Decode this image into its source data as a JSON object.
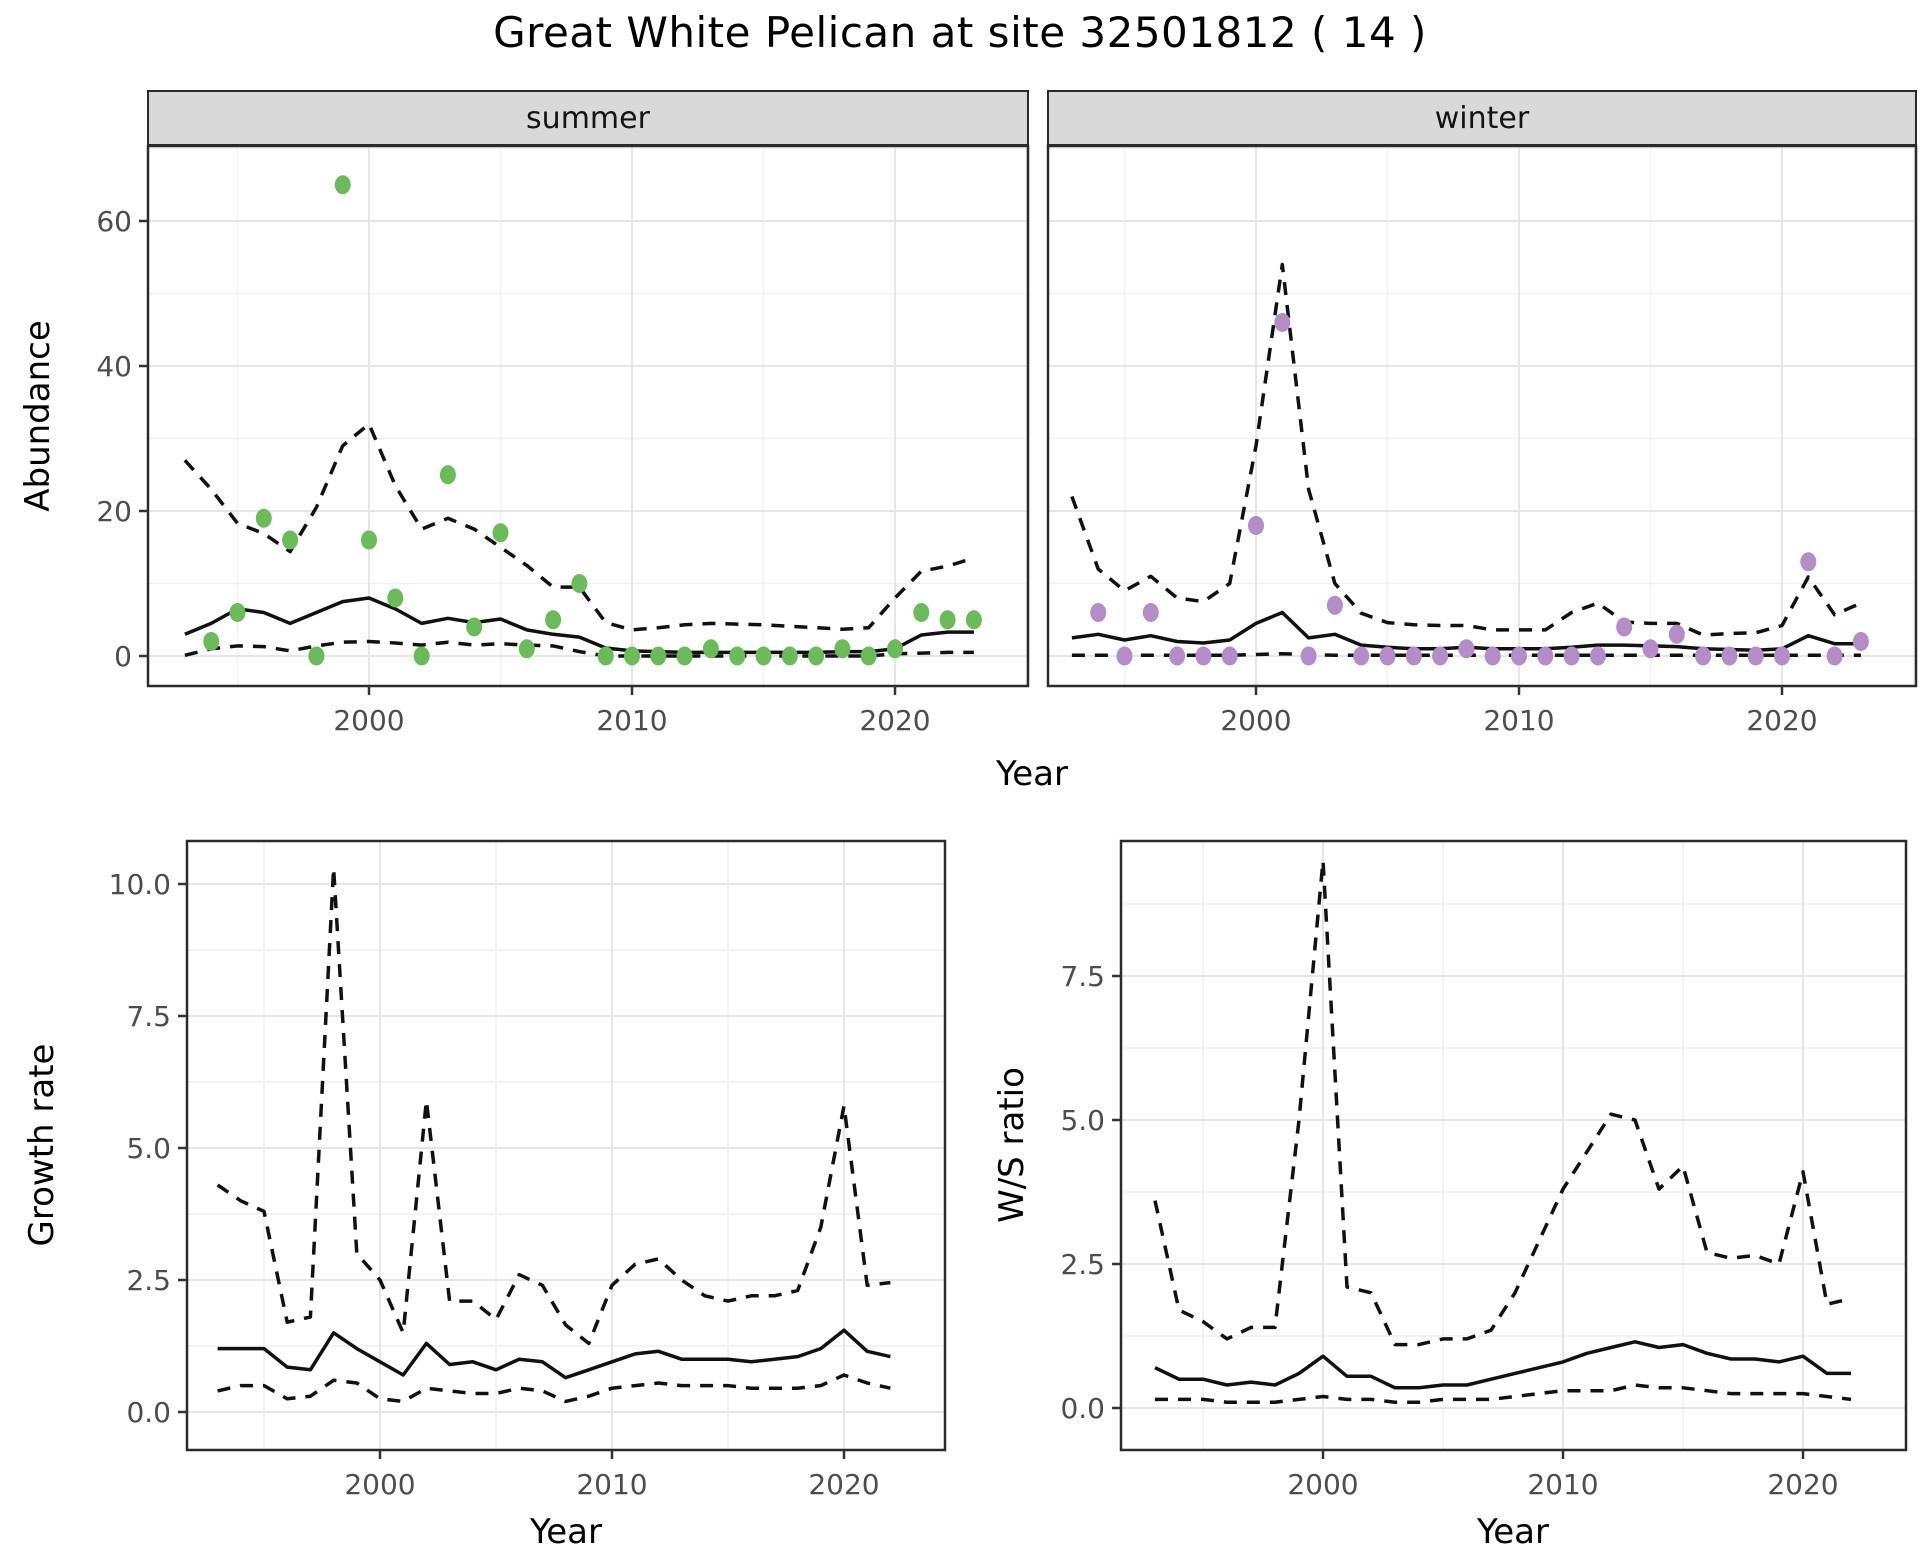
{
  "title": "Great White Pelican at site 32501812 ( 14 )",
  "colors": {
    "summer_point": "#6CBB5A",
    "winter_point": "#B48CC8",
    "line": "#111111",
    "grid_major": "#E6E6E6",
    "grid_minor": "#F1F1F1",
    "strip_bg": "#D9D9D9",
    "axis_text": "#4D4D4D",
    "panel_border": "#2B2B2B"
  },
  "chart_data": [
    {
      "type": "line",
      "facet": "summer",
      "xlabel": "Year",
      "ylabel": "Abundance",
      "legend_position": "none",
      "grid": true,
      "xlim": [
        1991.6,
        2025.2
      ],
      "ylim": [
        -4,
        70
      ],
      "xticks": {
        "values": [
          2000,
          2010,
          2020
        ],
        "labels": [
          "2000",
          "2010",
          "2020"
        ]
      },
      "xminor": [
        1995,
        2005,
        2015,
        2025
      ],
      "yticks": {
        "values": [
          0,
          20,
          40,
          60
        ],
        "labels": [
          "0",
          "20",
          "40",
          "60"
        ]
      },
      "yminor": [
        10,
        30,
        50,
        70
      ],
      "point_color": "#6CBB5A",
      "years_points": [
        1994,
        1995,
        1996,
        1997,
        1998,
        1999,
        2000,
        2001,
        2002,
        2003,
        2004,
        2005,
        2006,
        2007,
        2008,
        2009,
        2010,
        2011,
        2012,
        2013,
        2014,
        2015,
        2016,
        2017,
        2018,
        2019,
        2020,
        2021,
        2022,
        2023
      ],
      "points": [
        2,
        6,
        19,
        16,
        0,
        65,
        16,
        8,
        0,
        25,
        4,
        17,
        1,
        5,
        10,
        0,
        0,
        0,
        0,
        1,
        0,
        0,
        0,
        0,
        1,
        0,
        1,
        6,
        5,
        5
      ],
      "years_lines": [
        1993,
        1994,
        1995,
        1996,
        1997,
        1998,
        1999,
        2000,
        2001,
        2002,
        2003,
        2004,
        2005,
        2006,
        2007,
        2008,
        2009,
        2010,
        2011,
        2012,
        2013,
        2014,
        2015,
        2016,
        2017,
        2018,
        2019,
        2020,
        2021,
        2022,
        2023
      ],
      "fit": [
        3,
        4.5,
        6.5,
        6,
        4.5,
        6,
        7.5,
        8,
        6.5,
        4.5,
        5.2,
        4.6,
        5.1,
        3.6,
        3,
        2.6,
        1.1,
        0.7,
        0.6,
        0.5,
        0.5,
        0.5,
        0.5,
        0.5,
        0.5,
        0.6,
        0.6,
        1,
        2.9,
        3.3,
        3.3
      ],
      "ci_upper": [
        27,
        23,
        18.3,
        16.9,
        14.4,
        20.5,
        29,
        32,
        23.5,
        17.5,
        19,
        17.5,
        15,
        12.5,
        9.5,
        9.5,
        4.6,
        3.6,
        3.9,
        4.3,
        4.5,
        4.4,
        4.3,
        4.1,
        3.9,
        3.7,
        3.9,
        8,
        11.7,
        12.4,
        13.5
      ],
      "ci_lower": [
        0.1,
        1,
        1.4,
        1.3,
        0.7,
        1.4,
        1.9,
        2,
        1.8,
        1.5,
        1.9,
        1.5,
        1.7,
        1.5,
        1.4,
        0.6,
        0,
        0,
        0,
        0,
        0,
        0,
        0,
        0,
        0,
        0,
        0,
        0.3,
        0.4,
        0.5,
        0.5
      ]
    },
    {
      "type": "line",
      "facet": "winter",
      "xlabel": "Year",
      "ylabel": "Abundance",
      "legend_position": "none",
      "grid": true,
      "xlim": [
        1991.6,
        2025.2
      ],
      "ylim": [
        -4,
        70
      ],
      "xticks": {
        "values": [
          2000,
          2010,
          2020
        ],
        "labels": [
          "2000",
          "2010",
          "2020"
        ]
      },
      "xminor": [
        1995,
        2005,
        2015,
        2025
      ],
      "yticks": {
        "values": [
          0,
          20,
          40,
          60
        ],
        "labels": [
          "0",
          "20",
          "40",
          "60"
        ]
      },
      "yminor": [
        10,
        30,
        50,
        70
      ],
      "point_color": "#B48CC8",
      "years_points": [
        1994,
        1995,
        1996,
        1997,
        1998,
        1999,
        2000,
        2001,
        2002,
        2003,
        2004,
        2005,
        2006,
        2007,
        2008,
        2009,
        2010,
        2011,
        2012,
        2013,
        2014,
        2015,
        2016,
        2017,
        2018,
        2019,
        2020,
        2021,
        2022,
        2023
      ],
      "points": [
        6,
        0,
        6,
        0,
        0,
        0,
        18,
        46,
        0,
        7,
        0,
        0,
        0,
        0,
        1,
        0,
        0,
        0,
        0,
        0,
        4,
        1,
        3,
        0,
        0,
        0,
        0,
        13,
        0,
        2
      ],
      "years_lines": [
        1993,
        1994,
        1995,
        1996,
        1997,
        1998,
        1999,
        2000,
        2001,
        2002,
        2003,
        2004,
        2005,
        2006,
        2007,
        2008,
        2009,
        2010,
        2011,
        2012,
        2013,
        2014,
        2015,
        2016,
        2017,
        2018,
        2019,
        2020,
        2021,
        2022,
        2023
      ],
      "fit": [
        2.5,
        3,
        2.2,
        2.8,
        2,
        1.8,
        2.2,
        4.5,
        6,
        2.5,
        3,
        1.5,
        1.2,
        1,
        1,
        1.2,
        1,
        1,
        1,
        1.2,
        1.5,
        1.5,
        1.4,
        1.3,
        1,
        0.9,
        0.8,
        1,
        2.8,
        1.7,
        1.7
      ],
      "ci_upper": [
        22,
        12,
        9,
        11,
        8,
        7.5,
        10,
        29,
        54,
        23,
        10,
        5.9,
        4.6,
        4.3,
        4.2,
        4.2,
        3.6,
        3.6,
        3.6,
        6,
        7.3,
        4.7,
        4.5,
        4.5,
        2.9,
        3.1,
        3.2,
        4.2,
        10.9,
        5.7,
        7.3
      ],
      "ci_lower": [
        0.1,
        0.1,
        0.1,
        0.1,
        0.1,
        0.1,
        0.1,
        0.2,
        0.3,
        0.2,
        0.1,
        0.1,
        0.1,
        0.1,
        0.1,
        0.1,
        0.1,
        0.1,
        0.1,
        0.1,
        0.1,
        0.1,
        0.1,
        0.1,
        0.1,
        0.1,
        0.1,
        0.1,
        0.1,
        0.1,
        0.1
      ]
    },
    {
      "type": "line",
      "facet": "",
      "xlabel": "Year",
      "ylabel": "Growth rate",
      "legend_position": "none",
      "grid": true,
      "xlim": [
        1991.7,
        2024.4
      ],
      "ylim": [
        -0.8,
        10.8
      ],
      "xticks": {
        "values": [
          2000,
          2010,
          2020
        ],
        "labels": [
          "2000",
          "2010",
          "2020"
        ]
      },
      "xminor": [
        1995,
        2005,
        2015
      ],
      "yticks": {
        "values": [
          0,
          2.5,
          5,
          7.5,
          10
        ],
        "labels": [
          "0.0",
          "2.5",
          "5.0",
          "7.5",
          "10.0"
        ]
      },
      "yminor": [
        1.25,
        3.75,
        6.25,
        8.75
      ],
      "point_color": "",
      "years_points": [],
      "points": [],
      "years_lines": [
        1993,
        1994,
        1995,
        1996,
        1997,
        1998,
        1999,
        2000,
        2001,
        2002,
        2003,
        2004,
        2005,
        2006,
        2007,
        2008,
        2009,
        2010,
        2011,
        2012,
        2013,
        2014,
        2015,
        2016,
        2017,
        2018,
        2019,
        2020,
        2021,
        2022
      ],
      "fit": [
        1.2,
        1.2,
        1.2,
        0.85,
        0.8,
        1.5,
        1.2,
        0.95,
        0.7,
        1.3,
        0.9,
        0.95,
        0.8,
        1,
        0.95,
        0.65,
        0.8,
        0.95,
        1.1,
        1.15,
        1,
        1,
        1,
        0.95,
        1,
        1.05,
        1.2,
        1.55,
        1.15,
        1.05
      ],
      "ci_upper": [
        4.3,
        4,
        3.8,
        1.7,
        1.8,
        10.3,
        3,
        2.5,
        1.5,
        5.9,
        2.1,
        2.1,
        1.75,
        2.6,
        2.4,
        1.65,
        1.3,
        2.4,
        2.8,
        2.9,
        2.5,
        2.2,
        2.1,
        2.2,
        2.2,
        2.3,
        3.5,
        5.8,
        2.4,
        2.45
      ],
      "ci_lower": [
        0.4,
        0.5,
        0.5,
        0.25,
        0.3,
        0.6,
        0.55,
        0.25,
        0.2,
        0.45,
        0.4,
        0.35,
        0.35,
        0.45,
        0.4,
        0.2,
        0.3,
        0.45,
        0.5,
        0.55,
        0.5,
        0.5,
        0.5,
        0.45,
        0.45,
        0.45,
        0.5,
        0.7,
        0.55,
        0.45
      ]
    },
    {
      "type": "line",
      "facet": "",
      "xlabel": "Year",
      "ylabel": "W/S ratio",
      "legend_position": "none",
      "grid": true,
      "xlim": [
        1991.6,
        2024.3
      ],
      "ylim": [
        -1,
        9.85
      ],
      "xticks": {
        "values": [
          2000,
          2010,
          2020
        ],
        "labels": [
          "2000",
          "2010",
          "2020"
        ]
      },
      "xminor": [
        1995,
        2005,
        2015
      ],
      "yticks": {
        "values": [
          0,
          2.5,
          5,
          7.5
        ],
        "labels": [
          "0.0",
          "2.5",
          "5.0",
          "7.5"
        ]
      },
      "yminor": [
        1.25,
        3.75,
        6.25,
        8.75
      ],
      "point_color": "",
      "years_points": [],
      "points": [],
      "years_lines": [
        1993,
        1994,
        1995,
        1996,
        1997,
        1998,
        1999,
        2000,
        2001,
        2002,
        2003,
        2004,
        2005,
        2006,
        2007,
        2008,
        2009,
        2010,
        2011,
        2012,
        2013,
        2014,
        2015,
        2016,
        2017,
        2018,
        2019,
        2020,
        2021,
        2022
      ],
      "fit": [
        0.7,
        0.5,
        0.5,
        0.4,
        0.45,
        0.4,
        0.6,
        0.9,
        0.55,
        0.55,
        0.35,
        0.35,
        0.4,
        0.4,
        0.5,
        0.6,
        0.7,
        0.8,
        0.95,
        1.05,
        1.15,
        1.05,
        1.1,
        0.95,
        0.85,
        0.85,
        0.8,
        0.9,
        0.6,
        0.6
      ],
      "ci_upper": [
        3.6,
        1.7,
        1.5,
        1.2,
        1.4,
        1.4,
        5,
        9.5,
        2.1,
        2,
        1.1,
        1.1,
        1.2,
        1.2,
        1.35,
        2,
        2.9,
        3.8,
        4.45,
        5.1,
        5,
        3.8,
        4.2,
        2.7,
        2.6,
        2.65,
        2.5,
        4.1,
        1.8,
        1.9
      ],
      "ci_lower": [
        0.15,
        0.15,
        0.15,
        0.1,
        0.1,
        0.1,
        0.15,
        0.2,
        0.15,
        0.15,
        0.1,
        0.1,
        0.15,
        0.15,
        0.15,
        0.2,
        0.25,
        0.3,
        0.3,
        0.3,
        0.4,
        0.35,
        0.35,
        0.3,
        0.25,
        0.25,
        0.25,
        0.25,
        0.2,
        0.15
      ]
    }
  ]
}
